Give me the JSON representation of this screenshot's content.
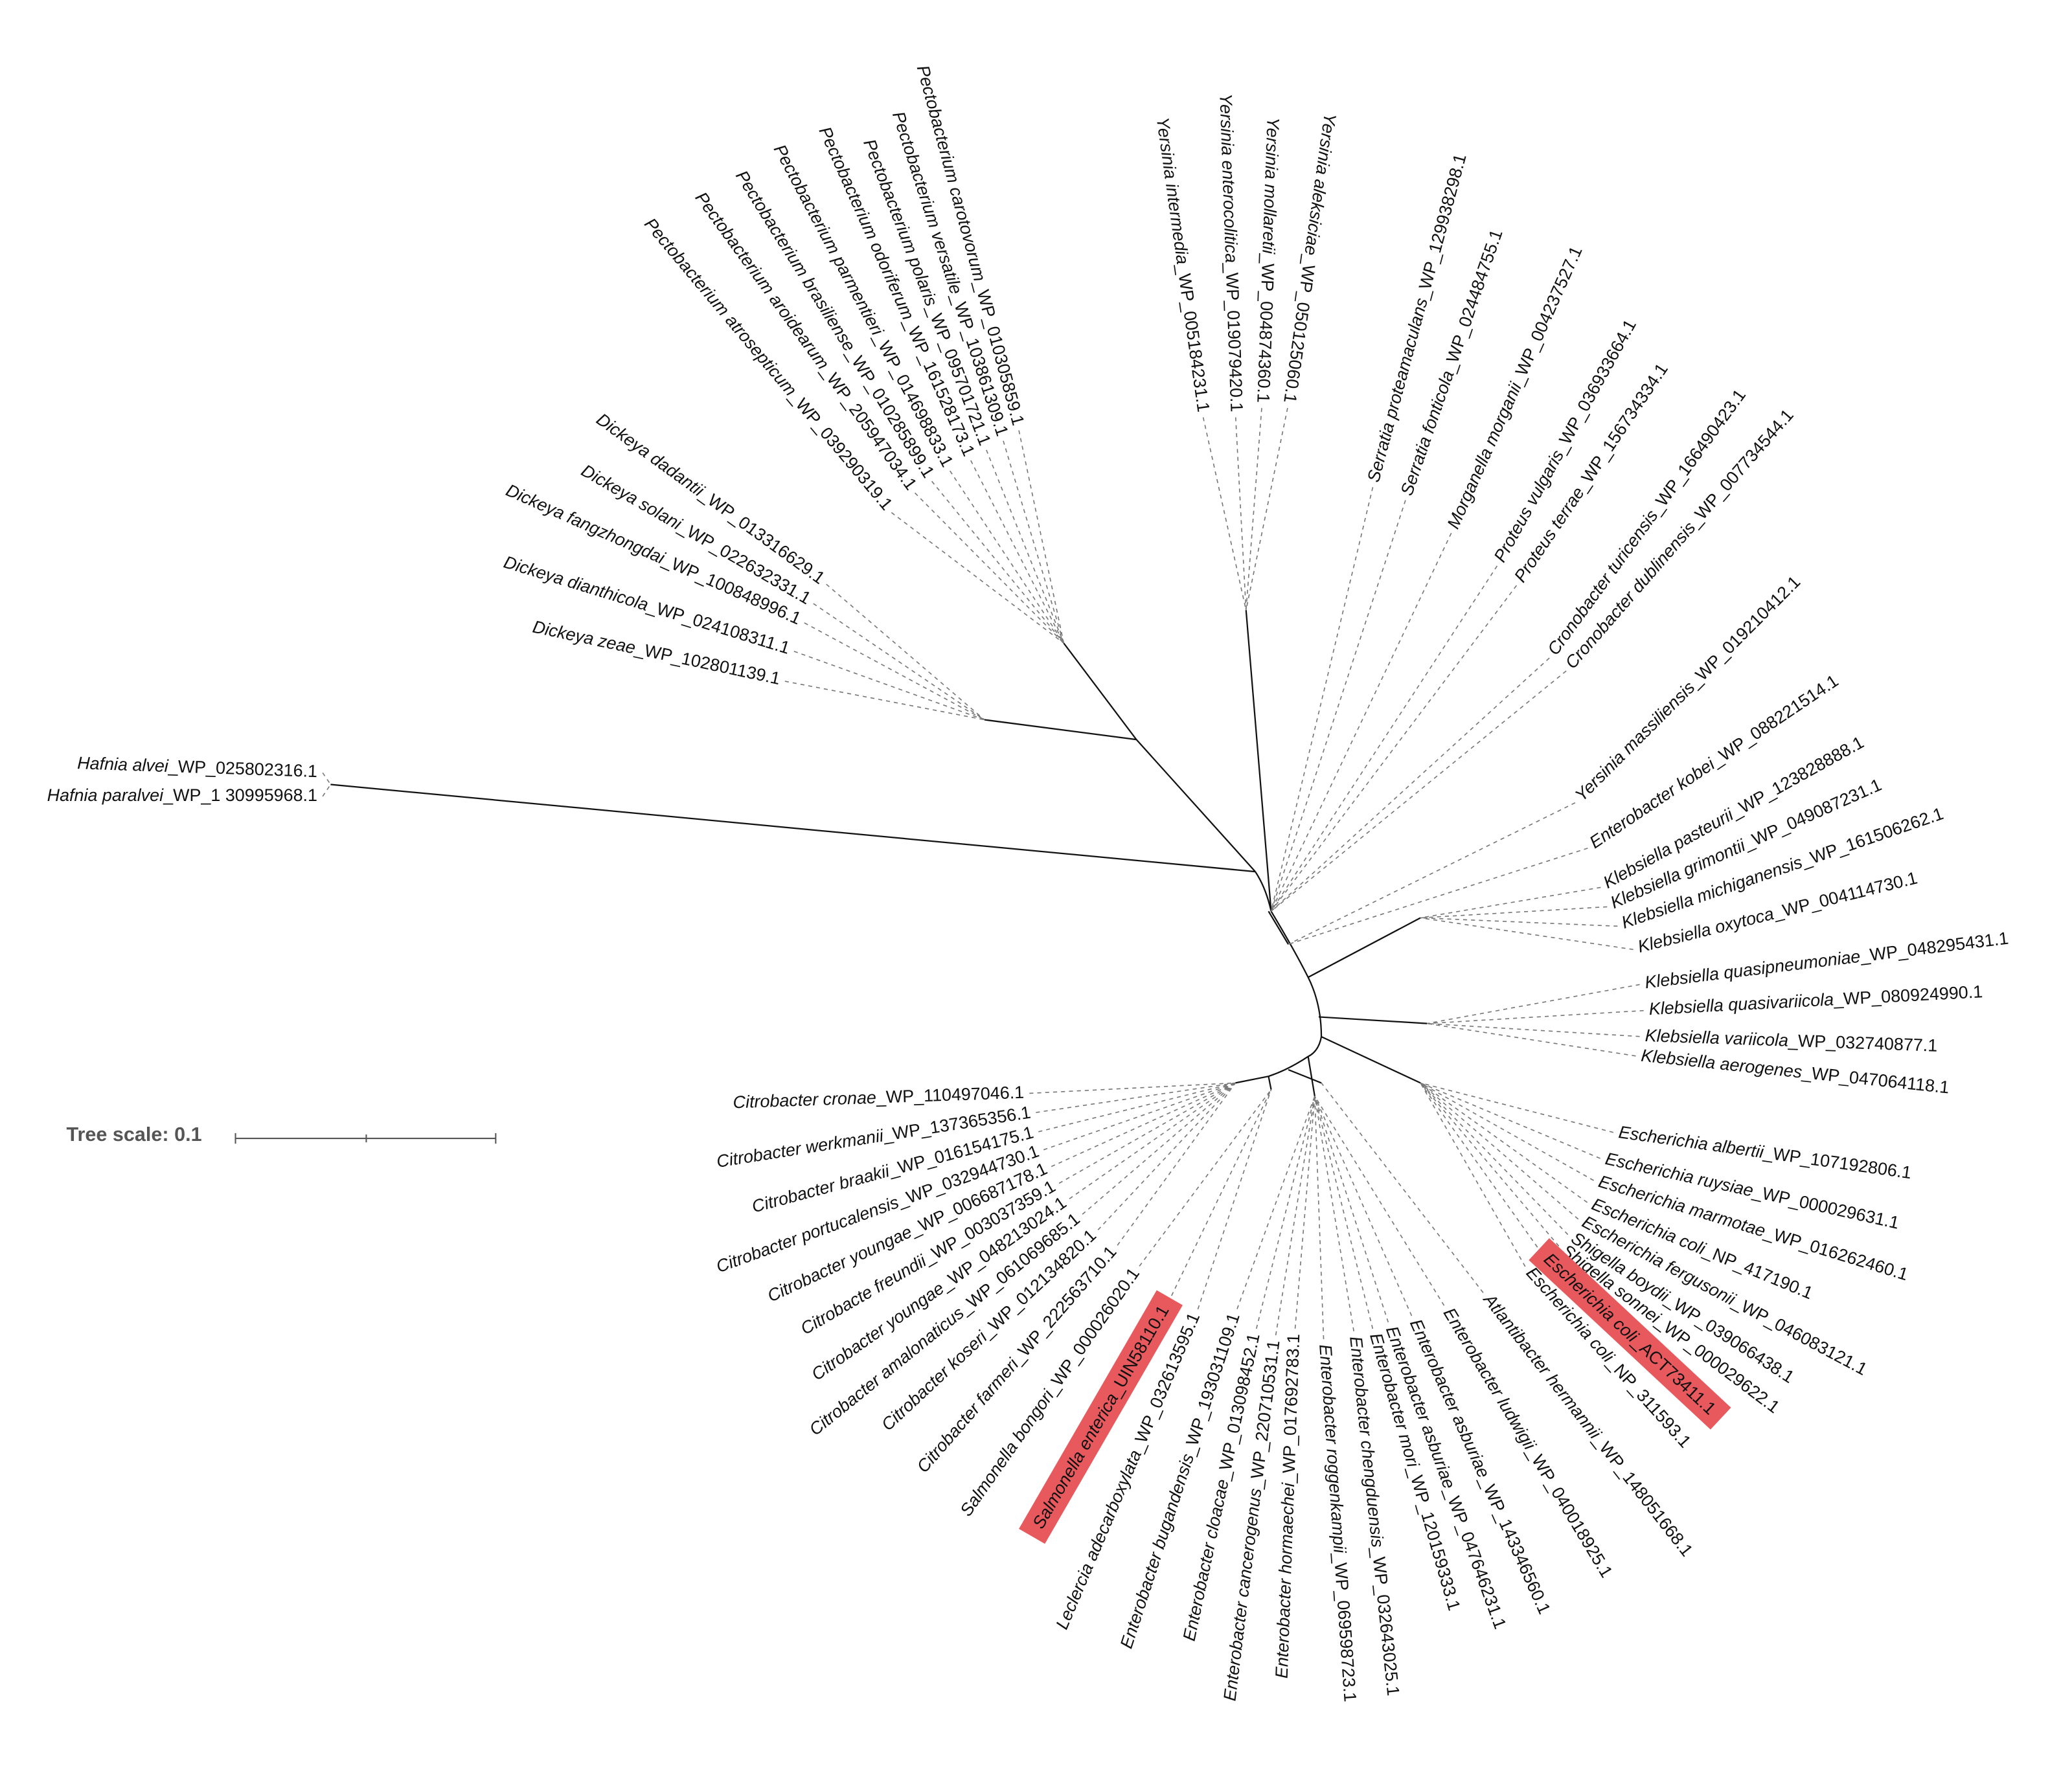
{
  "tree_scale": "Tree scale: 0.1",
  "leaves": [
    {
      "label": "Pectobacterium carotovorum_WP_010305859.1"
    },
    {
      "label": "Pectobacterium versatile_WP_103861309.1"
    },
    {
      "label": "Pectobacterium polaris_WP_095701721.1"
    },
    {
      "label": "Pectobacterium odoriferum_WP_161528173.1"
    },
    {
      "label": "Pectobacterium parmentieri_WP_014698833.1"
    },
    {
      "label": "Pectobacterium brasiliense_WP_010285899.1"
    },
    {
      "label": "Pectobacterium aroidearum_WP_205947034.1"
    },
    {
      "label": "Pectobacterium atrosepticum_WP_039290319.1"
    },
    {
      "label": "Dickeya dadantii_WP_013316629.1"
    },
    {
      "label": "Dickeya solani_WP_022632331.1"
    },
    {
      "label": "Dickeya fangzhongdai_WP_100848996.1"
    },
    {
      "label": "Dickeya dianthicola_WP_024108311.1"
    },
    {
      "label": "Dickeya zeae_WP_102801139.1"
    },
    {
      "label": "Hafnia alvei_WP_025802316.1"
    },
    {
      "label": "Hafnia paralvei_WP_1 30995968.1"
    },
    {
      "label": "Yersinia intermedia_WP_005184231.1"
    },
    {
      "label": "Yersinia enterocolitica_WP_019079420.1"
    },
    {
      "label": "Yersinia mollaretii_WP_004874360.1"
    },
    {
      "label": "Yersinia aleksiciae_WP_050125060.1"
    },
    {
      "label": "Serratia proteamaculans_WP_129938298.1"
    },
    {
      "label": "Serratia fonticola_WP_024484755.1"
    },
    {
      "label": "Morganella morganii_WP_004237527.1"
    },
    {
      "label": "Proteus vulgaris_WP_036933664.1"
    },
    {
      "label": "Proteus terrae_WP_156734334.1"
    },
    {
      "label": "Cronobacter turicensis_WP_166490423.1"
    },
    {
      "label": "Cronobacter dublinensis_WP_007734544.1"
    },
    {
      "label": "Yersinia massiliensis_WP_019210412.1"
    },
    {
      "label": "Enterobacter kobei_WP_088221514.1"
    },
    {
      "label": "Klebsiella pasteurii_WP_123828888.1"
    },
    {
      "label": "Klebsiella grimontii_WP_049087231.1"
    },
    {
      "label": "Klebsiella michiganensis_WP_161506262.1"
    },
    {
      "label": "Klebsiella oxytoca_WP_004114730.1"
    },
    {
      "label": "Klebsiella quasipneumoniae_WP_048295431.1"
    },
    {
      "label": "Klebsiella quasivariicola_WP_080924990.1"
    },
    {
      "label": "Klebsiella variicola_WP_032740877.1"
    },
    {
      "label": "Klebsiella aerogenes_WP_047064118.1"
    },
    {
      "label": "Escherichia albertii_WP_107192806.1"
    },
    {
      "label": "Escherichia ruysiae_WP_000029631.1"
    },
    {
      "label": "Escherichia marmotae_WP_016262460.1"
    },
    {
      "label": "Escherichia coli_NP_417190.1"
    },
    {
      "label": "Escherichia fergusonii_WP_046083121.1"
    },
    {
      "label": "Shigella boydii_WP_039066438.1"
    },
    {
      "label": "Shigella sonnei_WP_000029622.1"
    },
    {
      "label": "Escherichia coli_ACT73411.1",
      "highlight": true
    },
    {
      "label": "Escherichia coli_NP_311593.1"
    },
    {
      "label": "Atlantibacter hermannii_WP_148051668.1"
    },
    {
      "label": "Enterobacter ludwigii_WP_040018925.1"
    },
    {
      "label": "Enterobacter asburiae_WP_143346560.1"
    },
    {
      "label": "Enterobacter asburiae_WP_047646231.1"
    },
    {
      "label": "Enterobacter mori_WP_120159333.1"
    },
    {
      "label": "Enterobacter chengduensis_WP_032643025.1"
    },
    {
      "label": "Enterobacter roggenkampii_WP_069598723.1"
    },
    {
      "label": "Enterobacter hormaechei_WP_017692783.1"
    },
    {
      "label": "Enterobacter cancerogenus_WP_220710531.1"
    },
    {
      "label": "Enterobacter cloacae_WP_013098452.1"
    },
    {
      "label": "Enterobacter bugandensis_WP_193031109.1"
    },
    {
      "label": "Leclercia adecarboxylata_WP_032613595.1"
    },
    {
      "label": "Salmonella enterica_UIN58110.1",
      "highlight": true
    },
    {
      "label": "Salmonella bongori_WP_000026020.1"
    },
    {
      "label": "Citrobacter farmeri_WP_222563710.1"
    },
    {
      "label": "Citrobacter koseri_WP_012134820.1"
    },
    {
      "label": "Citrobacter amalonaticus_WP_061069685.1"
    },
    {
      "label": "Citrobacter youngae_WP_048213024.1"
    },
    {
      "label": "Citrobacte freundii_WP_003037359.1"
    },
    {
      "label": "Citrobacter youngae_WP_006687178.1"
    },
    {
      "label": "Citrobacter portucalensis_WP_032944730.1"
    },
    {
      "label": "Citrobacter braakii_WP_016154175.1"
    },
    {
      "label": "Citrobacter werkmanii_WP_137365356.1"
    },
    {
      "label": "Citrobacter cronae_WP_110497046.1"
    }
  ]
}
